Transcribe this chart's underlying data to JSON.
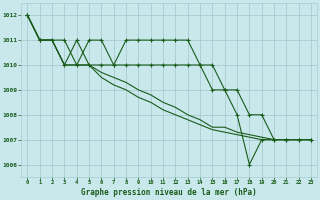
{
  "title": "Graphe pression niveau de la mer (hPa)",
  "bg_color": "#c8e8ec",
  "grid_color": "#a8ccd4",
  "line_color": "#1a5c1a",
  "x_ticks": [
    0,
    1,
    2,
    3,
    4,
    5,
    6,
    7,
    8,
    9,
    10,
    11,
    12,
    13,
    14,
    15,
    16,
    17,
    18,
    19,
    20,
    21,
    22,
    23
  ],
  "ylim": [
    1005.5,
    1012.5
  ],
  "yticks": [
    1006,
    1007,
    1008,
    1009,
    1010,
    1011,
    1012
  ],
  "series_jagged_top": [
    1012,
    1011,
    1011,
    1011,
    1010,
    1011,
    1011,
    1010,
    1011,
    1011,
    1011,
    1011,
    1011,
    1011,
    1010,
    1010,
    1009,
    1009,
    1008,
    1008,
    1007,
    1007,
    1007,
    1007
  ],
  "series_smooth1": [
    1012,
    1011,
    1011,
    1010,
    1010,
    1010,
    1009.7,
    1009.5,
    1009.3,
    1009.0,
    1008.8,
    1008.5,
    1008.3,
    1008.0,
    1007.8,
    1007.5,
    1007.5,
    1007.3,
    1007.2,
    1007.1,
    1007.0,
    1007.0,
    1007.0,
    1007.0
  ],
  "series_smooth2": [
    1012,
    1011,
    1011,
    1010,
    1010,
    1010,
    1009.5,
    1009.2,
    1009.0,
    1008.7,
    1008.5,
    1008.2,
    1008.0,
    1007.8,
    1007.6,
    1007.4,
    1007.3,
    1007.2,
    1007.1,
    1007.0,
    1007.0,
    1007.0,
    1007.0,
    1007.0
  ],
  "series_dip": [
    1012,
    1011,
    1011,
    1010,
    1011,
    1010,
    1010,
    1010,
    1010,
    1010,
    1010,
    1010,
    1010,
    1010,
    1010,
    1009,
    1009,
    1008,
    1006,
    1007,
    1007,
    1007,
    1007,
    1007
  ]
}
